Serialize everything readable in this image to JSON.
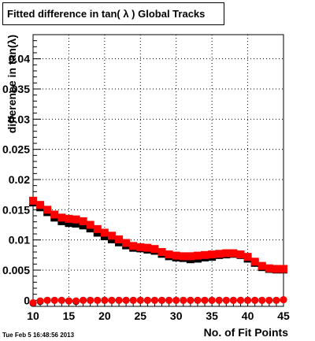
{
  "page": {
    "footer": "Tue Feb  5 16:48:56 2013"
  },
  "colors": {
    "series_black": "#000000",
    "series_red": "#ff0000",
    "grid": "#000000"
  },
  "chart_data": {
    "type": "scatter",
    "title": "Fitted difference in tan( λ )  Global Tracks",
    "xlabel": "No. of Fit Points",
    "ylabel": "difference in tan(λ)",
    "xlim": [
      10,
      45
    ],
    "ylim": [
      -0.001,
      0.044
    ],
    "grid": true,
    "xticks": [
      10,
      15,
      20,
      25,
      30,
      35,
      40,
      45
    ],
    "yticks": [
      0,
      0.005,
      0.01,
      0.015,
      0.02,
      0.025,
      0.03,
      0.035,
      0.04
    ],
    "ytick_labels": [
      "0",
      "0.005",
      "0.01",
      "0.015",
      "0.02",
      "0.025",
      "0.03",
      "0.035",
      "0.04"
    ],
    "x": [
      10,
      11,
      12,
      13,
      14,
      15,
      16,
      17,
      18,
      19,
      20,
      21,
      22,
      23,
      24,
      25,
      26,
      27,
      28,
      29,
      30,
      31,
      32,
      33,
      34,
      35,
      36,
      37,
      38,
      39,
      40,
      41,
      42,
      43,
      44,
      45
    ],
    "series": [
      {
        "color": "#000000",
        "marker": "square",
        "values": [
          0.0162,
          0.0154,
          0.0146,
          0.0137,
          0.0131,
          0.0128,
          0.0127,
          0.0124,
          0.0119,
          0.0112,
          0.0106,
          0.0101,
          0.0096,
          0.0091,
          0.0087,
          0.0086,
          0.0084,
          0.0082,
          0.0077,
          0.0073,
          0.0071,
          0.007,
          0.0068,
          0.0069,
          0.0071,
          0.0072,
          0.0075,
          0.0076,
          0.0077,
          0.0075,
          0.0069,
          0.0062,
          0.0055,
          0.0052,
          0.0051,
          0.0051
        ]
      },
      {
        "color": "#ff0000",
        "marker": "square",
        "values": [
          0.0165,
          0.0158,
          0.015,
          0.0142,
          0.0137,
          0.0135,
          0.0134,
          0.0131,
          0.0125,
          0.0118,
          0.0112,
          0.0107,
          0.0101,
          0.0095,
          0.009,
          0.0088,
          0.0087,
          0.0085,
          0.008,
          0.0076,
          0.0074,
          0.0073,
          0.0073,
          0.0074,
          0.0075,
          0.0076,
          0.0077,
          0.0078,
          0.0078,
          0.0076,
          0.0072,
          0.0064,
          0.0057,
          0.0053,
          0.0052,
          0.0052
        ]
      },
      {
        "color": "#000000",
        "marker": "circle",
        "values": [
          -0.0005,
          -0.0002,
          0.0,
          0.0,
          0.0,
          -0.0001,
          -0.0002,
          0.0,
          0.0,
          0.0,
          0.0,
          0.0,
          0.0,
          0.0,
          0.0,
          0.0,
          0.0,
          0.0,
          0.0,
          0.0,
          0.0,
          0.0,
          0.0,
          0.0,
          0.0,
          0.0,
          0.0,
          0.0,
          0.0,
          0.0,
          0.0,
          0.0,
          0.0,
          0.0,
          0.0,
          0.0001
        ]
      },
      {
        "color": "#ff0000",
        "marker": "circle",
        "values": [
          -0.0004,
          -0.0001,
          0.0,
          0.0,
          0.0,
          -0.0001,
          -0.0001,
          0.0,
          0.0,
          0.0,
          0.0,
          0.0,
          0.0,
          0.0,
          0.0,
          0.0,
          0.0,
          0.0,
          0.0,
          0.0,
          0.0,
          0.0,
          0.0,
          0.0,
          0.0,
          0.0,
          0.0,
          0.0,
          0.0,
          0.0,
          0.0,
          0.0,
          0.0,
          0.0,
          0.0,
          0.0001
        ]
      }
    ]
  }
}
